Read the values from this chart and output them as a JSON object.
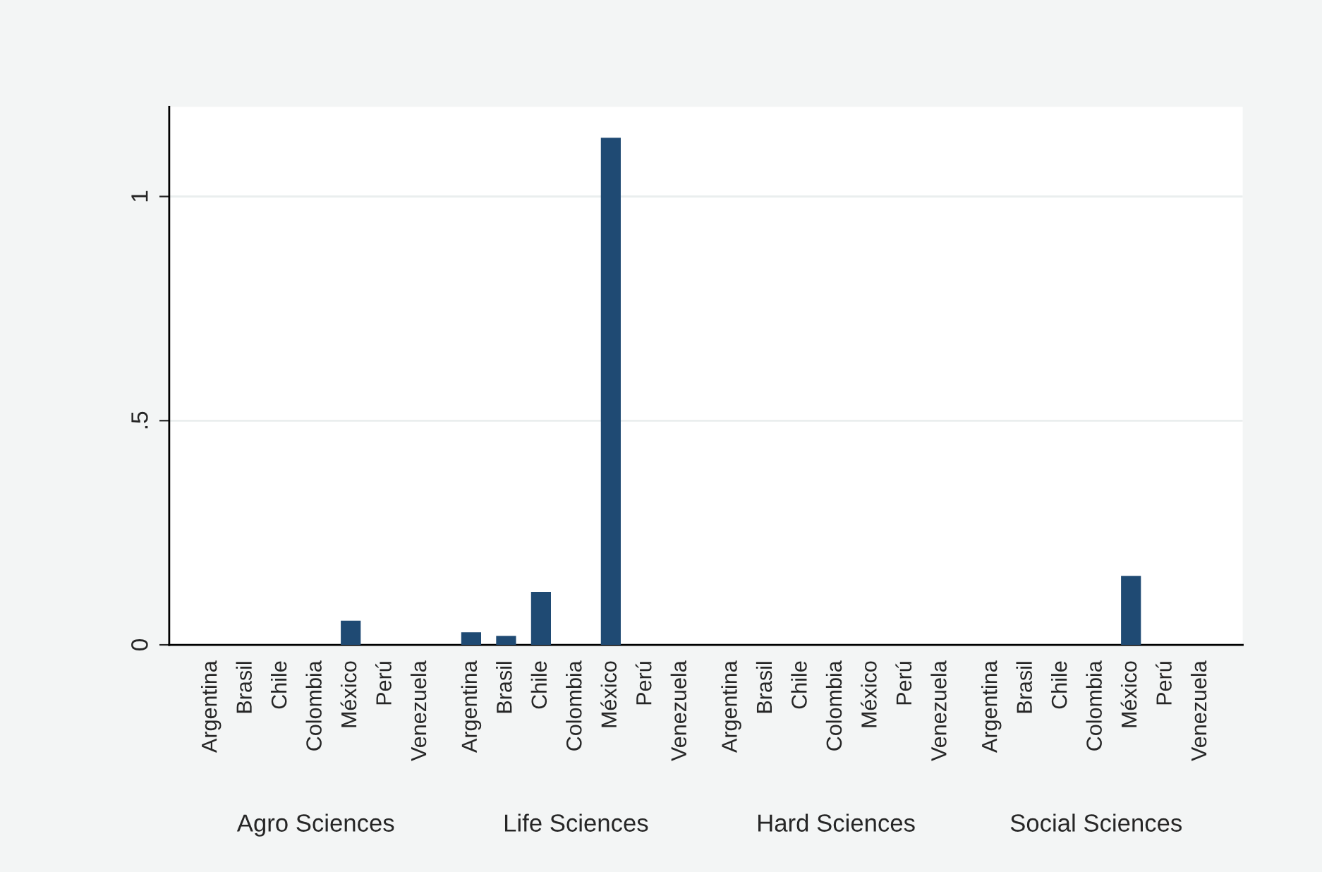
{
  "chart_data": {
    "type": "bar",
    "categories": [
      "Argentina",
      "Brasil",
      "Chile",
      "Colombia",
      "México",
      "Perú",
      "Venezuela",
      "Argentina",
      "Brasil",
      "Chile",
      "Colombia",
      "México",
      "Perú",
      "Venezuela",
      "Argentina",
      "Brasil",
      "Chile",
      "Colombia",
      "México",
      "Perú",
      "Venezuela",
      "Argentina",
      "Brasil",
      "Chile",
      "Colombia",
      "México",
      "Perú",
      "Venezuela"
    ],
    "values": [
      0,
      0,
      0,
      0,
      0.054,
      0,
      0,
      0.028,
      0.02,
      0.118,
      0,
      1.131,
      0,
      0,
      0,
      0,
      0,
      0,
      0,
      0,
      0,
      0,
      0,
      0,
      0,
      0.154,
      0,
      0
    ],
    "color": "#1f4a73",
    "annotations": [
      "Agro Sciences",
      "Life Sciences",
      "Hard Sciences",
      "Social Sciences"
    ],
    "ylim": [
      0,
      1.2
    ],
    "yticks": [
      0,
      {
        "value": 0.5,
        "label": ".5"
      },
      1
    ],
    "grid": "y"
  }
}
